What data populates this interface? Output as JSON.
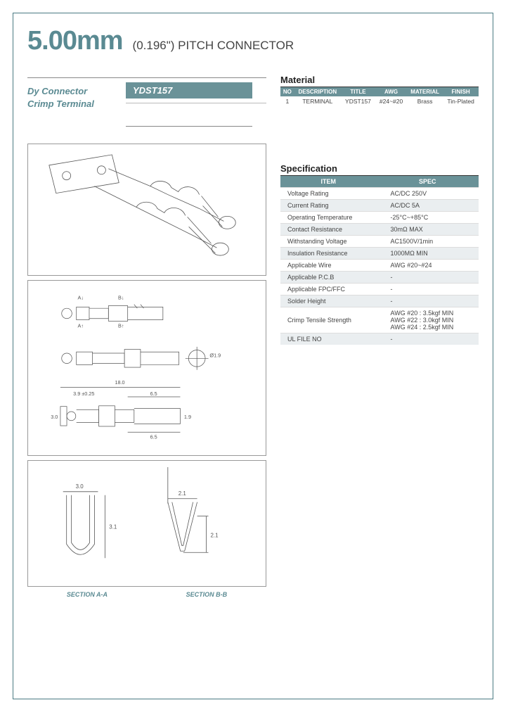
{
  "title": {
    "main": "5.00mm",
    "sub": "(0.196\") PITCH CONNECTOR"
  },
  "header": {
    "product_line1": "Dy Connector",
    "product_line2": "Crimp Terminal",
    "part_number": "YDST157"
  },
  "material": {
    "section_title": "Material",
    "columns": [
      "NO",
      "DESCRIPTION",
      "TITLE",
      "AWG",
      "MATERIAL",
      "FINISH"
    ],
    "rows": [
      [
        "1",
        "TERMINAL",
        "YDST157",
        "#24~#20",
        "Brass",
        "Tin-Plated"
      ]
    ]
  },
  "specification": {
    "section_title": "Specification",
    "columns": [
      "ITEM",
      "SPEC"
    ],
    "rows": [
      {
        "item": "Voltage Rating",
        "spec": "AC/DC 250V",
        "shade": false
      },
      {
        "item": "Current Rating",
        "spec": "AC/DC 5A",
        "shade": true
      },
      {
        "item": "Operating Temperature",
        "spec": "-25°C~+85°C",
        "shade": false
      },
      {
        "item": "Contact Resistance",
        "spec": "30mΩ MAX",
        "shade": true
      },
      {
        "item": "Withstanding Voltage",
        "spec": "AC1500V/1min",
        "shade": false
      },
      {
        "item": "Insulation Resistance",
        "spec": "1000MΩ MIN",
        "shade": true
      },
      {
        "item": "Applicable Wire",
        "spec": "AWG #20~#24",
        "shade": false
      },
      {
        "item": "Applicable P.C.B",
        "spec": "-",
        "shade": true
      },
      {
        "item": "Applicable FPC/FFC",
        "spec": "-",
        "shade": false
      },
      {
        "item": "Solder Height",
        "spec": "-",
        "shade": true
      },
      {
        "item": "Crimp Tensile Strength",
        "spec": "AWG #20 : 3.5kgf MIN\nAWG #22 : 3.0kgf MIN\nAWG #24 : 2.5kgf MIN",
        "shade": false
      },
      {
        "item": "UL FILE NO",
        "spec": "-",
        "shade": true
      }
    ]
  },
  "drawings": {
    "ortho": {
      "dim_total_len": "18.0",
      "dim_front": "6.5",
      "dim_back_offset": "3.9 ±0.25",
      "dim_back_inner": "6.5",
      "dim_height_left": "3.0",
      "dim_height_mid": "1.9",
      "dim_dia": "Ø1.9"
    },
    "sections": {
      "a_label": "SECTION A-A",
      "b_label": "SECTION B-B",
      "a_width": "3.0",
      "a_height": "3.1",
      "b_width": "2.1",
      "b_height": "2.1"
    }
  },
  "colors": {
    "brand": "#5a8a92",
    "brand_fill": "#6a9298",
    "border": "#4a7a82",
    "rule": "#888",
    "shade_row": "#eaeef0"
  }
}
